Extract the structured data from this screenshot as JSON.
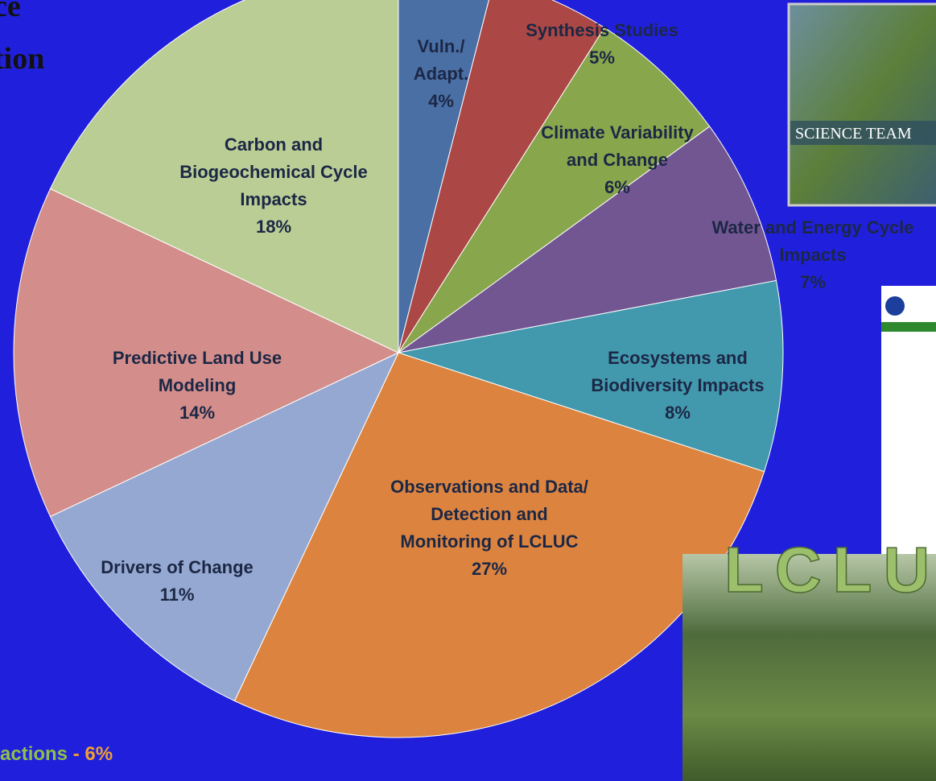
{
  "chart_data": {
    "type": "pie",
    "categories": [
      "Vuln./\nAdapt.",
      "Synthesis Studies",
      "Climate Variability\nand Change",
      "Water and Energy Cycle\nImpacts",
      "Ecosystems and\nBiodiversity Impacts",
      "Observations and Data/\nDetection and\nMonitoring of LCLUC",
      "Drivers of Change",
      "Predictive Land Use\nModeling",
      "Carbon and\nBiogeochemical Cycle\nImpacts"
    ],
    "values": [
      4,
      5,
      6,
      7,
      8,
      27,
      11,
      14,
      18
    ],
    "value_labels": [
      "4%",
      "5%",
      "6%",
      "7%",
      "8%",
      "27%",
      "11%",
      "14%",
      "18%"
    ],
    "colors": [
      "#4a6fa5",
      "#ab4744",
      "#88a64c",
      "#725692",
      "#4298ad",
      "#dc843f",
      "#94a8d1",
      "#d38e8b",
      "#b9cd95"
    ]
  },
  "slide": {
    "title_lines": [
      "ce",
      "tion"
    ],
    "footer_text": "actions",
    "footer_value": " - 6%",
    "image_captions": [
      "SCIENCE TEAM",
      "LCLUC"
    ]
  }
}
